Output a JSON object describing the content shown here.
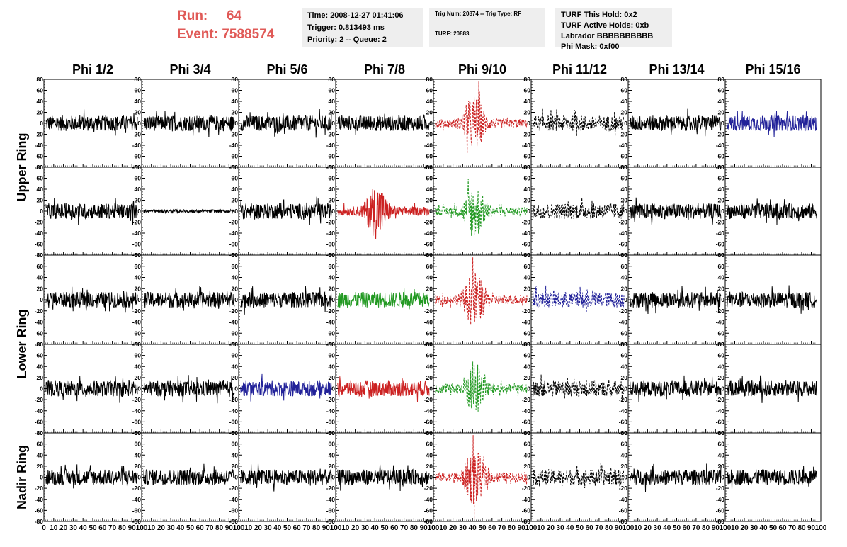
{
  "header": {
    "run_label": "Run:",
    "run_value": "64",
    "event_label": "Event:",
    "event_value": "7588574",
    "highlight_color": "#e05a57",
    "time": "Time: 2008-12-27 01:41:06",
    "trigger": "Trigger: 0.813493 ms",
    "priority": "Priority: 2 -- Queue: 2",
    "trig_num": "Trig Num: 20874 -- Trig Type: RF",
    "turf": "TURF: 20883",
    "turf_this_hold": "TURF This Hold: 0x2",
    "turf_active_holds": "TURF Active Holds: 0xb",
    "labrador": "Labrador BBBBBBBBBB",
    "phi_mask": "Phi Mask: 0xf00"
  },
  "columns": [
    "Phi 1/2",
    "Phi 3/4",
    "Phi 5/6",
    "Phi 7/8",
    "Phi 9/10",
    "Phi 11/12",
    "Phi 13/14",
    "Phi 15/16"
  ],
  "ring_labels": [
    "Upper Ring",
    "Lower Ring",
    "Nadir Ring"
  ],
  "y_tick_labels": [
    "80",
    "60",
    "40",
    "20",
    "0",
    "-20",
    "-40",
    "-60",
    "-80"
  ],
  "x_tick_labels": [
    "0",
    "10",
    "20",
    "30",
    "40",
    "50",
    "60",
    "70",
    "80",
    "90",
    "100"
  ],
  "colors": {
    "black": "#000000",
    "red": "#cc2222",
    "green": "#229922",
    "blue": "#222299"
  },
  "chart_data": {
    "type": "line",
    "xlim": [
      0,
      100
    ],
    "ylim": [
      -80,
      80
    ],
    "panels": [
      [
        "black",
        "black",
        "black",
        "black",
        "red",
        "black",
        "black",
        "blue"
      ],
      [
        "black",
        "black",
        "black",
        "red",
        "green",
        "black",
        "black",
        "black"
      ],
      [
        "black",
        "black",
        "black",
        "green",
        "red",
        "blue",
        "black",
        "black"
      ],
      [
        "black",
        "black",
        "blue",
        "red",
        "green",
        "black",
        "black",
        "black"
      ],
      [
        "black",
        "black",
        "black",
        "black",
        "red",
        "black",
        "black",
        "black"
      ]
    ],
    "styles": [
      [
        "solid",
        "solid",
        "solid",
        "solid",
        "dashed",
        "dashed",
        "solid",
        "solid"
      ],
      [
        "solid",
        "solid",
        "solid",
        "solid",
        "dashed",
        "dashed",
        "solid",
        "solid"
      ],
      [
        "solid",
        "solid",
        "solid",
        "solid",
        "dashed",
        "dashed",
        "solid",
        "solid"
      ],
      [
        "solid",
        "solid",
        "solid",
        "solid",
        "dashed",
        "dashed",
        "solid",
        "solid"
      ],
      [
        "solid",
        "solid",
        "solid",
        "solid",
        "dashed",
        "dashed",
        "solid",
        "solid"
      ]
    ],
    "pulse_panels": [
      [
        0,
        4
      ],
      [
        1,
        3
      ],
      [
        1,
        4
      ],
      [
        2,
        4
      ],
      [
        3,
        4
      ],
      [
        4,
        4
      ]
    ],
    "flat_panels": [
      [
        1,
        1
      ]
    ]
  }
}
